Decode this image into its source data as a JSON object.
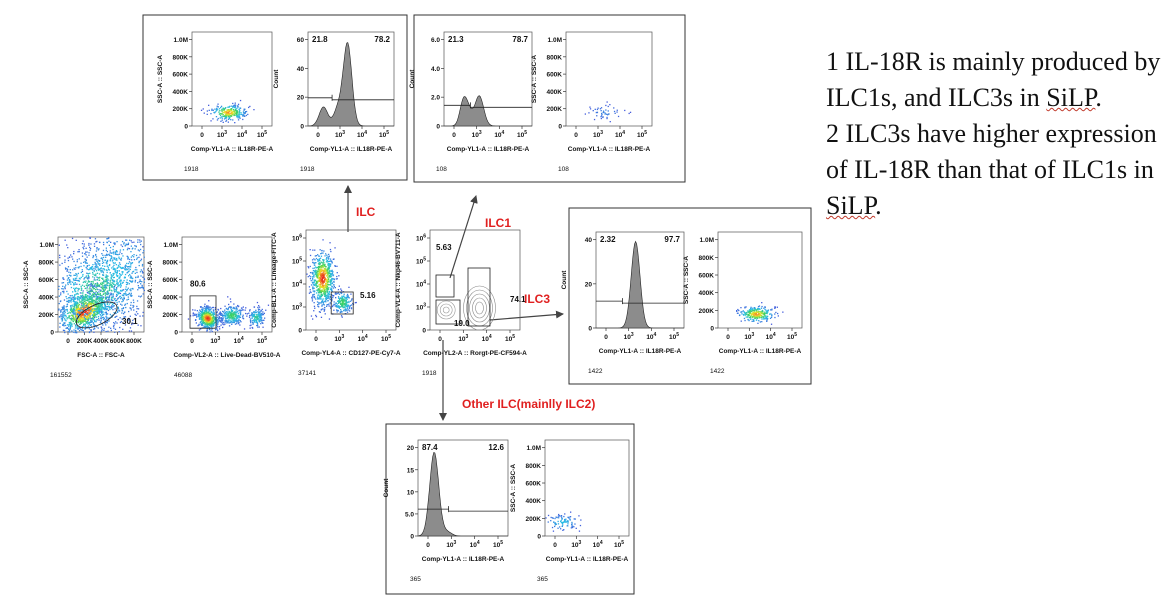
{
  "notes": {
    "line1_a": "1 IL-18R is mainly produced by ILC1s, and ILC3s in ",
    "line1_b": "SiLP",
    "line1_c": ".",
    "line2_a": "2 ILC3s have higher expression of IL-18R than that of ILC1s in ",
    "line2_b": "SiLP",
    "line2_c": "."
  },
  "labels": {
    "ilc": "ILC",
    "ilc1": "ILC1",
    "ilc3": "ILC3",
    "other": "Other ILC(mainlly ILC2)"
  },
  "colors": {
    "label_red": "#e02020",
    "hist_fill": "#8c8c8c",
    "box": "#333333"
  },
  "chart_data": [
    {
      "id": "fsc-ssc",
      "type": "scatter",
      "xlabel": "FSC-A :: FSC-A",
      "ylabel": "SSC-A :: SSC-A",
      "x_ticks": [
        "0",
        "200K",
        "400K",
        "600K",
        "800K"
      ],
      "y_ticks": [
        "0",
        "200K",
        "400K",
        "600K",
        "800K",
        "1.0M"
      ],
      "gates": [
        {
          "label": "30.1"
        }
      ],
      "event_count": "161552"
    },
    {
      "id": "live-dead",
      "type": "scatter",
      "xlabel": "Comp-VL2-A :: Live-Dead-BV510-A",
      "ylabel": "SSC-A :: SSC-A",
      "x_ticks": [
        "0",
        "10",
        "10",
        "10"
      ],
      "x_exps": [
        "",
        "3",
        "4",
        "5"
      ],
      "y_ticks": [
        "0",
        "200K",
        "400K",
        "600K",
        "800K",
        "1.0M"
      ],
      "gates": [
        {
          "label": "80.6"
        }
      ],
      "event_count": "46088"
    },
    {
      "id": "lin-cd127",
      "type": "scatter",
      "xlabel": "Comp-YL4-A :: CD127-PE-Cy7-A",
      "ylabel": "Comp-BL1-A :: Lineage-FITC-A",
      "x_ticks": [
        "0",
        "10",
        "10",
        "10"
      ],
      "x_exps": [
        "",
        "3",
        "4",
        "5"
      ],
      "y_ticks": [
        "0",
        "10",
        "10",
        "10",
        "10"
      ],
      "y_exps": [
        "",
        "3",
        "4",
        "5",
        "6"
      ],
      "gates": [
        {
          "label": "5.16"
        }
      ],
      "event_count": "37141"
    },
    {
      "id": "nkp46-rorgt",
      "type": "scatter",
      "xlabel": "Comp-YL2-A :: Rorgt-PE-CF594-A",
      "ylabel": "Comp-VL4-A :: Nkp46-BV711-A",
      "x_ticks": [
        "0",
        "10",
        "10",
        "10"
      ],
      "x_exps": [
        "",
        "3",
        "4",
        "5"
      ],
      "y_ticks": [
        "0",
        "10",
        "10",
        "10",
        "10"
      ],
      "y_exps": [
        "",
        "3",
        "4",
        "5",
        "6"
      ],
      "gates": [
        {
          "label": "5.63"
        },
        {
          "label": "74.1"
        },
        {
          "label": "19.0"
        }
      ],
      "event_count": "1918"
    },
    {
      "id": "ilc-ssc",
      "type": "scatter",
      "xlabel": "Comp-YL1-A :: IL18R-PE-A",
      "ylabel": "SSC-A :: SSC-A",
      "x_ticks": [
        "0",
        "10",
        "10",
        "10"
      ],
      "x_exps": [
        "",
        "3",
        "4",
        "5"
      ],
      "y_ticks": [
        "0",
        "200K",
        "400K",
        "600K",
        "800K",
        "1.0M"
      ],
      "event_count": "1918"
    },
    {
      "id": "ilc-hist",
      "type": "area",
      "xlabel": "Comp-YL1-A :: IL18R-PE-A",
      "ylabel": "Count",
      "x_ticks": [
        "0",
        "10",
        "10",
        "10"
      ],
      "x_exps": [
        "",
        "3",
        "4",
        "5"
      ],
      "y_ticks": [
        "0",
        "20",
        "40",
        "60"
      ],
      "ylim": [
        0,
        60
      ],
      "gates": [
        {
          "label": "21.8"
        },
        {
          "label": "78.2"
        }
      ],
      "event_count": "1918"
    },
    {
      "id": "ilc1-hist",
      "type": "area",
      "xlabel": "Comp-YL1-A :: IL18R-PE-A",
      "ylabel": "Count",
      "x_ticks": [
        "0",
        "10",
        "10",
        "10"
      ],
      "x_exps": [
        "",
        "3",
        "4",
        "5"
      ],
      "y_ticks": [
        "0",
        "2.0",
        "4.0",
        "6.0"
      ],
      "ylim": [
        0,
        6
      ],
      "gates": [
        {
          "label": "21.3"
        },
        {
          "label": "78.7"
        }
      ],
      "event_count": "108"
    },
    {
      "id": "ilc1-ssc",
      "type": "scatter",
      "xlabel": "Comp-YL1-A :: IL18R-PE-A",
      "ylabel": "SSC-A :: SSC-A",
      "x_ticks": [
        "0",
        "10",
        "10",
        "10"
      ],
      "x_exps": [
        "",
        "3",
        "4",
        "5"
      ],
      "y_ticks": [
        "0",
        "200K",
        "400K",
        "600K",
        "800K",
        "1.0M"
      ],
      "event_count": "108"
    },
    {
      "id": "ilc3-hist",
      "type": "area",
      "xlabel": "Comp-YL1-A :: IL18R-PE-A",
      "ylabel": "Count",
      "x_ticks": [
        "0",
        "10",
        "10",
        "10"
      ],
      "x_exps": [
        "",
        "3",
        "4",
        "5"
      ],
      "y_ticks": [
        "0",
        "20",
        "40"
      ],
      "gates": [
        {
          "label": "2.32"
        },
        {
          "label": "97.7"
        }
      ],
      "event_count": "1422"
    },
    {
      "id": "ilc3-ssc",
      "type": "scatter",
      "xlabel": "Comp-YL1-A :: IL18R-PE-A",
      "ylabel": "SSC-A :: SSC-A",
      "x_ticks": [
        "0",
        "10",
        "10",
        "10"
      ],
      "x_exps": [
        "",
        "3",
        "4",
        "5"
      ],
      "y_ticks": [
        "0",
        "200K",
        "400K",
        "600K",
        "800K",
        "1.0M"
      ],
      "event_count": "1422"
    },
    {
      "id": "other-hist",
      "type": "area",
      "xlabel": "Comp-YL1-A :: IL18R-PE-A",
      "ylabel": "Count",
      "x_ticks": [
        "0",
        "10",
        "10",
        "10"
      ],
      "x_exps": [
        "",
        "3",
        "4",
        "5"
      ],
      "y_ticks": [
        "0",
        "5.0",
        "10",
        "15",
        "20"
      ],
      "ylim": [
        0,
        20
      ],
      "gates": [
        {
          "label": "87.4"
        },
        {
          "label": "12.6"
        }
      ],
      "event_count": "365"
    },
    {
      "id": "other-ssc",
      "type": "scatter",
      "xlabel": "Comp-YL1-A :: IL18R-PE-A",
      "ylabel": "SSC-A :: SSC-A",
      "x_ticks": [
        "0",
        "10",
        "10",
        "10"
      ],
      "x_exps": [
        "",
        "3",
        "4",
        "5"
      ],
      "y_ticks": [
        "0",
        "200K",
        "400K",
        "600K",
        "800K",
        "1.0M"
      ],
      "event_count": "365"
    }
  ]
}
